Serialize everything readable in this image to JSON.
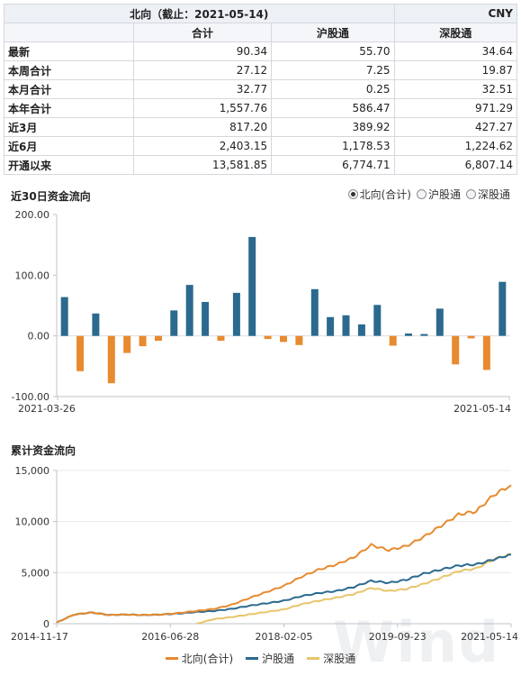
{
  "table": {
    "caption": "北向（截止：2021-05-14)",
    "currency": "CNY",
    "columns": [
      "合计",
      "沪股通",
      "深股通"
    ],
    "rows": [
      {
        "label": "最新",
        "values": [
          "90.34",
          "55.70",
          "34.64"
        ]
      },
      {
        "label": "本周合计",
        "values": [
          "27.12",
          "7.25",
          "19.87"
        ]
      },
      {
        "label": "本月合计",
        "values": [
          "32.77",
          "0.25",
          "32.51"
        ]
      },
      {
        "label": "本年合计",
        "values": [
          "1,557.76",
          "586.47",
          "971.29"
        ]
      },
      {
        "label": "近3月",
        "values": [
          "817.20",
          "389.92",
          "427.27"
        ]
      },
      {
        "label": "近6月",
        "values": [
          "2,403.15",
          "1,178.53",
          "1,224.62"
        ]
      },
      {
        "label": "开通以来",
        "values": [
          "13,581.85",
          "6,774.71",
          "6,807.14"
        ]
      }
    ]
  },
  "flow30": {
    "title": "近30日资金流向",
    "radios": [
      {
        "label": "北向(合计)",
        "selected": true
      },
      {
        "label": "沪股通",
        "selected": false
      },
      {
        "label": "深股通",
        "selected": false
      }
    ]
  },
  "cumulative": {
    "title": "累计资金流向",
    "legend": [
      "北向(合计)",
      "沪股通",
      "深股通"
    ]
  },
  "watermark": "Wind",
  "colors": {
    "positive": "#2b6a8e",
    "negative": "#e88a2e",
    "north": "#e88a2e",
    "sh": "#2b6a8e",
    "sz": "#e8c56a"
  },
  "chart_data": [
    {
      "type": "bar",
      "title": "近30日资金流向",
      "x_labels": [
        "2021-03-26",
        "2021-05-14"
      ],
      "ylim": [
        -100,
        200
      ],
      "yticks": [
        "200.00",
        "100.00",
        "0.00",
        "-100.00"
      ],
      "values": [
        64,
        -58,
        37,
        -78,
        -28,
        -17,
        -8,
        42,
        84,
        56,
        -8,
        71,
        163,
        -5,
        -10,
        -15,
        77,
        31,
        34,
        19,
        51,
        -16,
        4,
        3,
        45,
        -47,
        -4,
        -56,
        89
      ]
    },
    {
      "type": "line",
      "title": "累计资金流向",
      "x_labels": [
        "2014-11-17",
        "2016-06-28",
        "2018-02-05",
        "2019-09-23",
        "2021-05-14"
      ],
      "ylim": [
        0,
        15000
      ],
      "yticks": [
        "15,000",
        "10,000",
        "5,000",
        "0"
      ],
      "x": [
        "2014-11",
        "2015-02",
        "2015-05",
        "2015-08",
        "2015-11",
        "2016-02",
        "2016-05",
        "2016-08",
        "2016-11",
        "2017-02",
        "2017-05",
        "2017-08",
        "2017-11",
        "2018-02",
        "2018-05",
        "2018-08",
        "2018-11",
        "2019-02",
        "2019-05",
        "2019-08",
        "2019-11",
        "2020-02",
        "2020-05",
        "2020-08",
        "2020-11",
        "2021-02",
        "2021-05"
      ],
      "series": [
        {
          "name": "北向(合计)",
          "values": [
            120,
            900,
            1100,
            850,
            900,
            850,
            900,
            1050,
            1250,
            1450,
            1850,
            2500,
            3100,
            3700,
            4600,
            5300,
            5800,
            6500,
            7700,
            7200,
            7600,
            8500,
            9600,
            10700,
            11000,
            12600,
            13580
          ]
        },
        {
          "name": "沪股通",
          "values": [
            120,
            900,
            1100,
            850,
            900,
            850,
            900,
            1000,
            1150,
            1250,
            1450,
            1750,
            2000,
            2250,
            2700,
            3000,
            3200,
            3600,
            4200,
            4000,
            4300,
            4900,
            5300,
            5700,
            5800,
            6300,
            6775
          ]
        },
        {
          "name": "深股通",
          "values": [
            null,
            null,
            null,
            null,
            null,
            null,
            null,
            null,
            0,
            450,
            650,
            900,
            1150,
            1400,
            1900,
            2250,
            2550,
            2900,
            3500,
            3200,
            3400,
            3900,
            4500,
            5150,
            5400,
            6300,
            6807
          ]
        }
      ]
    }
  ]
}
